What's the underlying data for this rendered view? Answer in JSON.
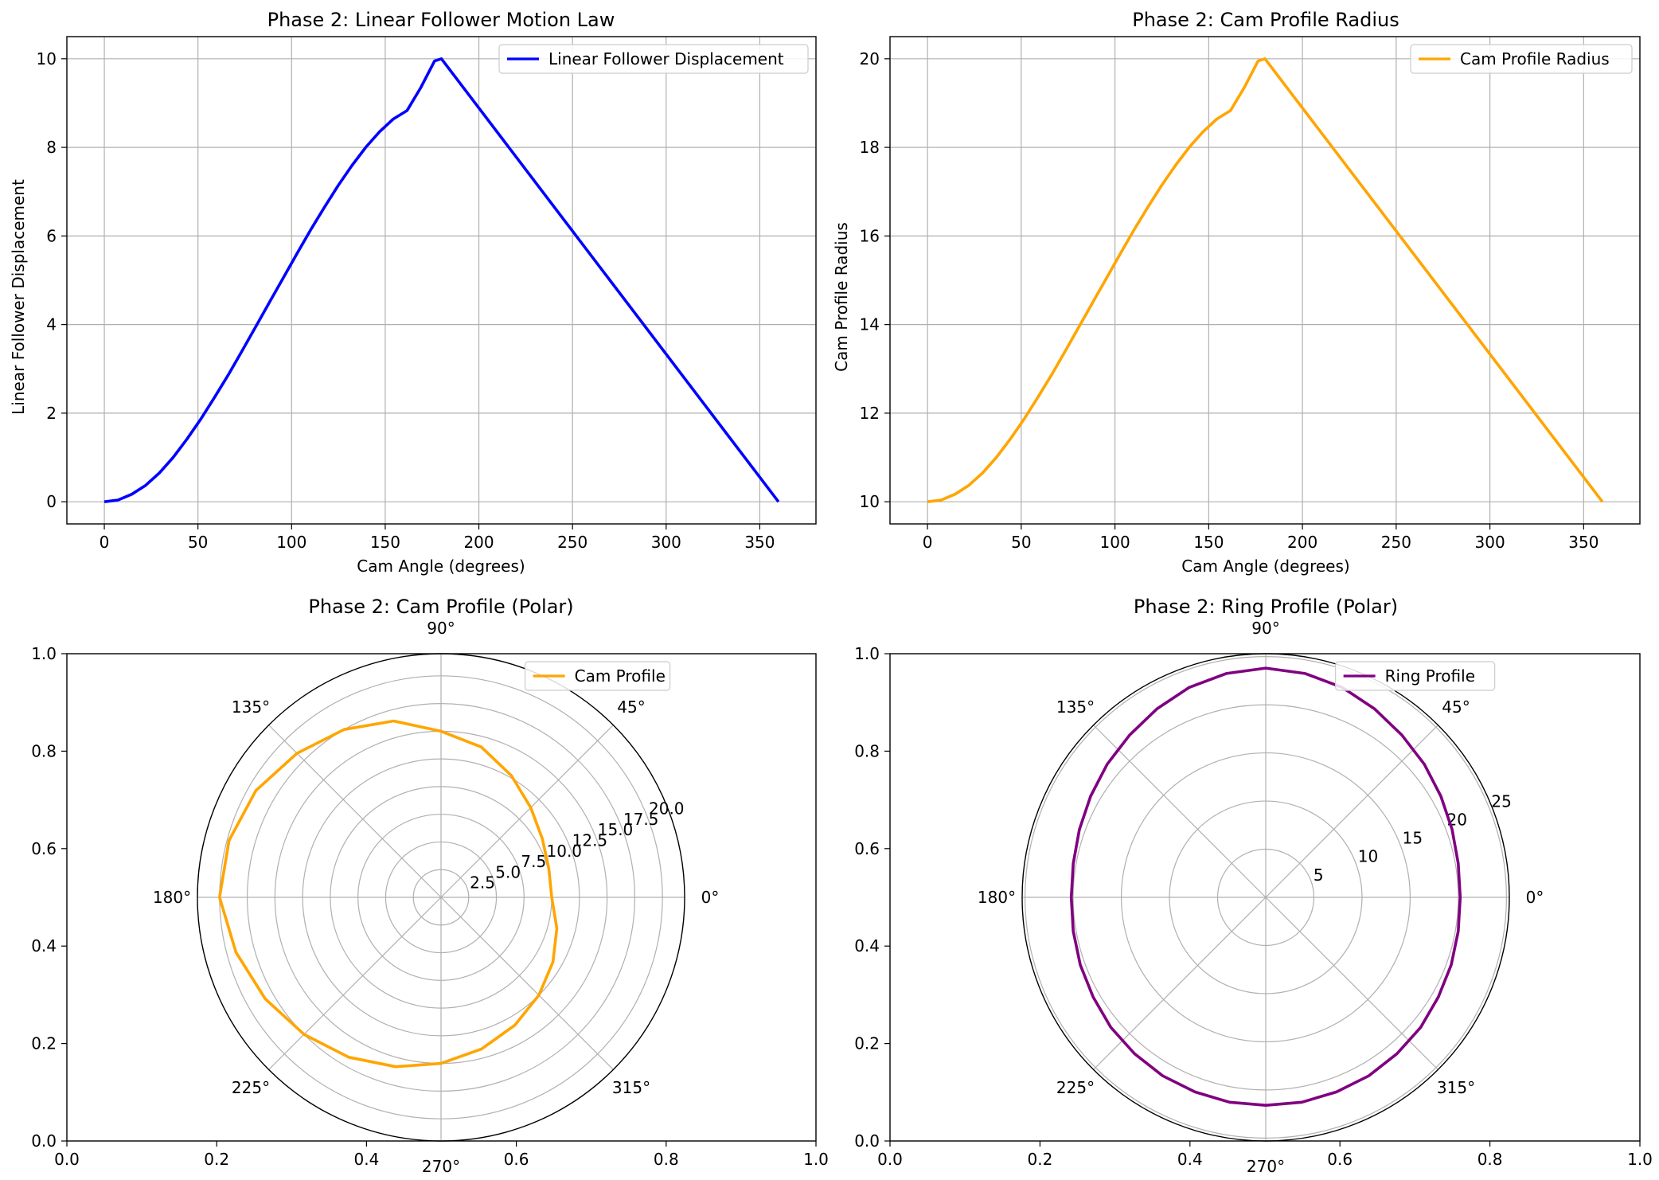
{
  "chart_data": [
    {
      "type": "line",
      "title": "Phase 2: Linear Follower Motion Law",
      "xlabel": "Cam Angle (degrees)",
      "ylabel": "Linear Follower Displacement",
      "xlim": [
        -20,
        380
      ],
      "ylim": [
        -0.5,
        10.5
      ],
      "xticks": [
        0,
        50,
        100,
        150,
        200,
        250,
        300,
        350
      ],
      "yticks": [
        0,
        2,
        4,
        6,
        8,
        10
      ],
      "grid": true,
      "legend": "top-right",
      "series": [
        {
          "name": "Linear Follower Displacement",
          "color": "#0000ff",
          "x": [
            0,
            7.35,
            14.69,
            22.04,
            29.39,
            36.73,
            44.08,
            51.43,
            58.78,
            66.12,
            73.47,
            80.82,
            88.16,
            95.51,
            102.86,
            110.2,
            117.55,
            124.9,
            132.24,
            139.59,
            146.94,
            154.29,
            161.63,
            168.98,
            176.33,
            180,
            360
          ],
          "y": [
            0,
            0.04,
            0.17,
            0.37,
            0.65,
            1.0,
            1.41,
            1.86,
            2.35,
            2.86,
            3.4,
            3.95,
            4.5,
            5.05,
            5.6,
            6.14,
            6.65,
            7.14,
            7.59,
            8.0,
            8.35,
            8.64,
            8.83,
            9.35,
            9.95,
            10.0,
            0
          ]
        }
      ]
    },
    {
      "type": "line",
      "title": "Phase 2: Cam Profile Radius",
      "xlabel": "Cam Angle (degrees)",
      "ylabel": "Cam Profile Radius",
      "xlim": [
        -20,
        380
      ],
      "ylim": [
        9.5,
        20.5
      ],
      "xticks": [
        0,
        50,
        100,
        150,
        200,
        250,
        300,
        350
      ],
      "yticks": [
        10,
        12,
        14,
        16,
        18,
        20
      ],
      "grid": true,
      "legend": "top-right",
      "series": [
        {
          "name": "Cam Profile Radius",
          "color": "#ffa500",
          "x": [
            0,
            7.35,
            14.69,
            22.04,
            29.39,
            36.73,
            44.08,
            51.43,
            58.78,
            66.12,
            73.47,
            80.82,
            88.16,
            95.51,
            102.86,
            110.2,
            117.55,
            124.9,
            132.24,
            139.59,
            146.94,
            154.29,
            161.63,
            168.98,
            176.33,
            180,
            360
          ],
          "y": [
            10,
            10.04,
            10.17,
            10.37,
            10.65,
            11.0,
            11.41,
            11.86,
            12.35,
            12.86,
            13.4,
            13.95,
            14.5,
            15.05,
            15.6,
            16.14,
            16.65,
            17.14,
            17.59,
            18.0,
            18.35,
            18.64,
            18.83,
            19.35,
            19.95,
            20.0,
            10
          ]
        }
      ]
    },
    {
      "type": "polar",
      "title": "Phase 2: Cam Profile (Polar)",
      "theta_ticks": [
        "0°",
        "45°",
        "90°",
        "135°",
        "180°",
        "225°",
        "270°",
        "315°"
      ],
      "r_ticks": [
        "2.5",
        "5.0",
        "7.5",
        "10.0",
        "12.5",
        "15.0",
        "17.5",
        "20.0"
      ],
      "r_max": 22,
      "frame_ticks_x": [
        "0.0",
        "0.2",
        "0.4",
        "0.6",
        "0.8",
        "1.0"
      ],
      "frame_ticks_y": [
        "0.0",
        "0.2",
        "0.4",
        "0.6",
        "0.8",
        "1.0"
      ],
      "legend": "top-right",
      "series": [
        {
          "name": "Cam Profile",
          "color": "#ffa500",
          "theta_deg": [
            0,
            15,
            30,
            45,
            60,
            75,
            90,
            105,
            120,
            135,
            150,
            165,
            180,
            195,
            210,
            225,
            240,
            255,
            270,
            285,
            300,
            315,
            330,
            345,
            360
          ],
          "r": [
            10.0,
            10.08,
            10.57,
            11.46,
            12.7,
            14.05,
            15.0,
            16.49,
            17.5,
            18.39,
            19.3,
            19.82,
            20.0,
            19.17,
            18.33,
            17.5,
            16.67,
            15.83,
            15.0,
            14.17,
            13.33,
            12.5,
            11.67,
            10.83,
            10.0
          ]
        }
      ]
    },
    {
      "type": "polar",
      "title": "Phase 2: Ring Profile (Polar)",
      "theta_ticks": [
        "0°",
        "45°",
        "90°",
        "135°",
        "180°",
        "225°",
        "270°",
        "315°"
      ],
      "r_ticks": [
        "5",
        "10",
        "15",
        "20",
        "25"
      ],
      "r_max": 25.3,
      "frame_ticks_x": [
        "0.0",
        "0.2",
        "0.4",
        "0.6",
        "0.8",
        "1.0"
      ],
      "frame_ticks_y": [
        "0.0",
        "0.2",
        "0.4",
        "0.6",
        "0.8",
        "1.0"
      ],
      "legend": "top-right",
      "series": [
        {
          "name": "Ring Profile",
          "color": "#800080",
          "theta_deg": [
            0,
            10,
            20,
            30,
            40,
            50,
            60,
            70,
            80,
            90,
            100,
            110,
            120,
            130,
            140,
            150,
            160,
            170,
            180,
            190,
            200,
            210,
            220,
            230,
            240,
            250,
            260,
            270,
            280,
            290,
            300,
            310,
            320,
            330,
            340,
            350,
            360
          ],
          "r": [
            20.2,
            20.3,
            20.6,
            21.0,
            21.5,
            22.0,
            22.6,
            23.2,
            23.6,
            23.8,
            23.6,
            23.2,
            22.6,
            22.0,
            21.5,
            21.0,
            20.6,
            20.3,
            20.2,
            20.3,
            20.5,
            20.7,
            21.0,
            21.2,
            21.4,
            21.5,
            21.6,
            21.6,
            21.6,
            21.5,
            21.4,
            21.2,
            21.0,
            20.7,
            20.5,
            20.3,
            20.2
          ]
        }
      ]
    }
  ]
}
